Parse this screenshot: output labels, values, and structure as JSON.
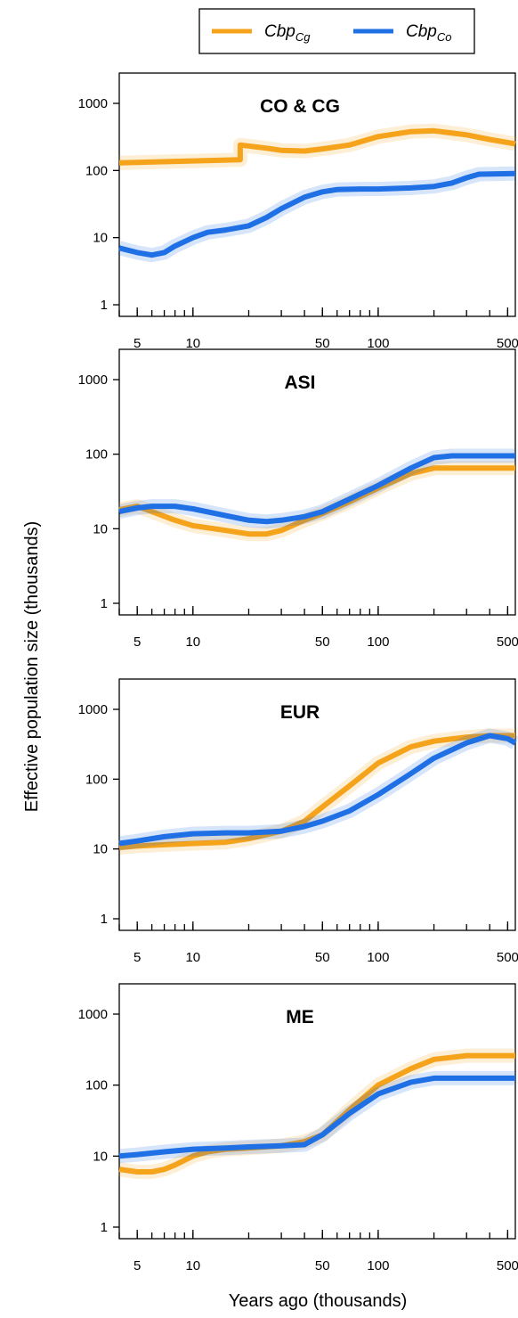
{
  "figure": {
    "ylabel": "Effective population size (thousands)",
    "xlabel": "Years ago (thousands)"
  },
  "legend": {
    "items": [
      {
        "base": "Cbp",
        "sub": "Cg",
        "color": "#F5A31A"
      },
      {
        "base": "Cbp",
        "sub": "Co",
        "color": "#1F6FE5"
      }
    ]
  },
  "colors": {
    "Cg": "#F5A31A",
    "Co": "#1F6FE5"
  },
  "chart_data": [
    {
      "type": "line",
      "title": "CO & CG",
      "x_scale": "log",
      "y_scale": "log",
      "xlim": [
        4,
        550
      ],
      "ylim": [
        1,
        1000
      ],
      "x_ticks": [
        5,
        10,
        50,
        100,
        500
      ],
      "y_ticks": [
        1,
        10,
        100,
        1000
      ],
      "series": [
        {
          "name": "Cg",
          "x": [
            4,
            18,
            18,
            25,
            30,
            40,
            50,
            70,
            100,
            150,
            200,
            300,
            400,
            550
          ],
          "y": [
            130,
            145,
            240,
            215,
            200,
            195,
            210,
            240,
            320,
            380,
            390,
            340,
            290,
            250
          ]
        },
        {
          "name": "Co",
          "x": [
            4,
            5,
            6,
            7,
            8,
            10,
            12,
            15,
            20,
            25,
            30,
            40,
            50,
            60,
            80,
            100,
            150,
            200,
            250,
            300,
            350,
            550
          ],
          "y": [
            7,
            6,
            5.5,
            6,
            7.5,
            10,
            12,
            13,
            15,
            20,
            27,
            40,
            48,
            52,
            53,
            53,
            55,
            58,
            65,
            78,
            88,
            90
          ]
        }
      ]
    },
    {
      "type": "line",
      "title": "ASI",
      "x_scale": "log",
      "y_scale": "log",
      "xlim": [
        4,
        550
      ],
      "ylim": [
        1,
        1000
      ],
      "x_ticks": [
        5,
        10,
        50,
        100,
        500
      ],
      "y_ticks": [
        1,
        10,
        100,
        1000
      ],
      "series": [
        {
          "name": "Cg",
          "x": [
            4,
            5,
            6,
            8,
            10,
            15,
            20,
            25,
            30,
            40,
            50,
            70,
            100,
            150,
            200,
            250,
            550
          ],
          "y": [
            18,
            20,
            17,
            13,
            11,
            9.5,
            8.5,
            8.5,
            9.5,
            13,
            16,
            23,
            35,
            55,
            65,
            65,
            65
          ]
        },
        {
          "name": "Co",
          "x": [
            4,
            5,
            6,
            8,
            10,
            15,
            20,
            25,
            30,
            40,
            50,
            70,
            100,
            150,
            200,
            250,
            550
          ],
          "y": [
            17,
            19,
            20,
            20,
            18.5,
            15,
            13,
            12.5,
            13,
            14.5,
            17,
            25,
            38,
            65,
            90,
            95,
            95
          ]
        }
      ]
    },
    {
      "type": "line",
      "title": "EUR",
      "x_scale": "log",
      "y_scale": "log",
      "xlim": [
        4,
        550
      ],
      "ylim": [
        1,
        1000
      ],
      "x_ticks": [
        5,
        10,
        50,
        100,
        500
      ],
      "y_ticks": [
        1,
        10,
        100,
        1000
      ],
      "series": [
        {
          "name": "Cg",
          "x": [
            4,
            5,
            7,
            10,
            15,
            20,
            30,
            40,
            50,
            70,
            100,
            150,
            200,
            300,
            400,
            550
          ],
          "y": [
            10.5,
            11,
            11.5,
            12,
            12.5,
            14,
            18,
            25,
            40,
            80,
            170,
            290,
            350,
            400,
            420,
            420
          ]
        },
        {
          "name": "Co",
          "x": [
            4,
            5,
            7,
            10,
            15,
            20,
            30,
            40,
            50,
            70,
            100,
            150,
            200,
            300,
            400,
            500,
            550
          ],
          "y": [
            12,
            13,
            15,
            16.5,
            17,
            17,
            18,
            21,
            25,
            35,
            60,
            120,
            200,
            330,
            420,
            380,
            330
          ]
        }
      ]
    },
    {
      "type": "line",
      "title": "ME",
      "x_scale": "log",
      "y_scale": "log",
      "xlim": [
        4,
        550
      ],
      "ylim": [
        1,
        1000
      ],
      "x_ticks": [
        5,
        10,
        50,
        100,
        500
      ],
      "y_ticks": [
        1,
        10,
        100,
        1000
      ],
      "series": [
        {
          "name": "Cg",
          "x": [
            4,
            5,
            6,
            7,
            8,
            10,
            12,
            15,
            20,
            30,
            40,
            50,
            70,
            100,
            150,
            200,
            300,
            550
          ],
          "y": [
            6.5,
            6,
            6,
            6.5,
            7.5,
            10,
            11.5,
            12.5,
            13,
            14,
            16,
            20,
            45,
            100,
            170,
            230,
            260,
            260
          ]
        },
        {
          "name": "Co",
          "x": [
            4,
            5,
            7,
            10,
            15,
            20,
            30,
            40,
            50,
            70,
            100,
            150,
            200,
            300,
            550
          ],
          "y": [
            10,
            10.5,
            11.5,
            12.5,
            13,
            13.5,
            14,
            14.5,
            20,
            40,
            75,
            110,
            125,
            125,
            125
          ]
        }
      ]
    }
  ]
}
